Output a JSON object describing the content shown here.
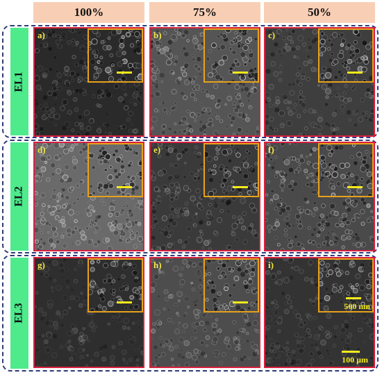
{
  "columns": [
    "100%",
    "75%",
    "50%"
  ],
  "rows": [
    {
      "label": "EL1",
      "panels": [
        "a)",
        "b)",
        "c)"
      ]
    },
    {
      "label": "EL2",
      "panels": [
        "d)",
        "e)",
        "f)"
      ]
    },
    {
      "label": "EL3",
      "panels": [
        "g)",
        "h)",
        "i)"
      ]
    }
  ],
  "scale_inset_label": "500 nm",
  "scale_main_label": "100 µm",
  "colors": {
    "header_bg": "#f8cfb5",
    "row_label_bg": "#4eea8c",
    "group_border": "#2c3a78",
    "panel_border": "#d8213f",
    "inset_border": "#e8a21a",
    "scale_bar": "#f5ea1a"
  }
}
